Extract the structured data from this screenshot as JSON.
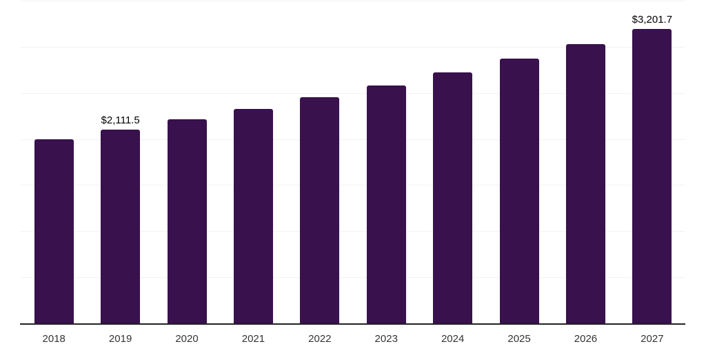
{
  "chart_data": {
    "type": "bar",
    "title": "",
    "xlabel": "",
    "ylabel": "",
    "categories": [
      "2018",
      "2019",
      "2020",
      "2021",
      "2022",
      "2023",
      "2024",
      "2025",
      "2026",
      "2027"
    ],
    "values": [
      2005,
      2111.5,
      2220,
      2335,
      2460,
      2590,
      2730,
      2880,
      3035,
      3201.7
    ],
    "data_labels": [
      "",
      "$2,111.5",
      "",
      "",
      "",
      "",
      "",
      "",
      "",
      "$3,201.7"
    ],
    "ylim": [
      0,
      3500
    ],
    "gridline_step": 500,
    "grid": true,
    "legend": "none",
    "colors": {
      "bar": "#38114d",
      "gridline": "#f2f2f2",
      "axis_line": "#222222",
      "tick_label": "#333333",
      "data_label": "#000000",
      "background": "#ffffff"
    }
  }
}
